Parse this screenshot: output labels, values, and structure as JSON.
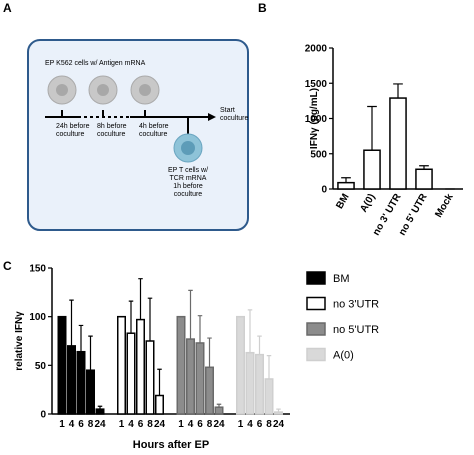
{
  "diagram": {
    "panel": "A",
    "donor_label": [
      "EP K562 cells w/ Antigen mRNA"
    ],
    "time_labels": [
      [
        "24h before",
        "coculture"
      ],
      [
        "8h before",
        "coculture"
      ],
      [
        "4h before",
        "coculture"
      ]
    ],
    "start_label": [
      "Start",
      "coculture"
    ],
    "tcell_label": [
      "EP T cells w/",
      "TCR mRNA",
      "1h before",
      "coculture"
    ]
  },
  "chart_data": [
    {
      "type": "bar",
      "panel": "B",
      "ylabel": "IFNγ (pg/mL)",
      "categories": [
        "BM",
        "A(0)",
        "no 3' UTR",
        "no 5' UTR",
        "Mock"
      ],
      "values": [
        90,
        550,
        1290,
        280,
        0
      ],
      "errors": [
        70,
        620,
        200,
        50,
        0
      ],
      "color": "#ffffff",
      "edgecolor": "#000000",
      "ylim": [
        0,
        2000
      ],
      "yticks": [
        0,
        500,
        1000,
        1500,
        2000
      ]
    },
    {
      "type": "bar",
      "panel": "C",
      "ylabel": "relative IFNγ",
      "xlabel": "Hours after EP",
      "categories": [
        "1",
        "4",
        "6",
        "8",
        "24"
      ],
      "series": [
        {
          "name": "BM",
          "color": "#000000",
          "edgecolor": "#000000",
          "values": [
            100,
            70,
            64,
            45,
            5
          ],
          "errors": [
            0,
            47,
            27,
            35,
            3
          ]
        },
        {
          "name": "no 3'UTR",
          "color": "#ffffff",
          "edgecolor": "#000000",
          "values": [
            100,
            83,
            97,
            75,
            19
          ],
          "errors": [
            0,
            33,
            42,
            44,
            27
          ]
        },
        {
          "name": "no 5'UTR",
          "color": "#8c8c8c",
          "edgecolor": "#6a6a6a",
          "values": [
            100,
            77,
            73,
            48,
            7
          ],
          "errors": [
            0,
            50,
            28,
            30,
            3
          ]
        },
        {
          "name": "A(0)",
          "color": "#d9d9d9",
          "edgecolor": "#cfcfcf",
          "values": [
            100,
            63,
            61,
            36,
            2
          ],
          "errors": [
            0,
            44,
            19,
            24,
            3
          ]
        }
      ],
      "ylim": [
        0,
        150
      ],
      "yticks": [
        0,
        50,
        100,
        150
      ]
    }
  ]
}
